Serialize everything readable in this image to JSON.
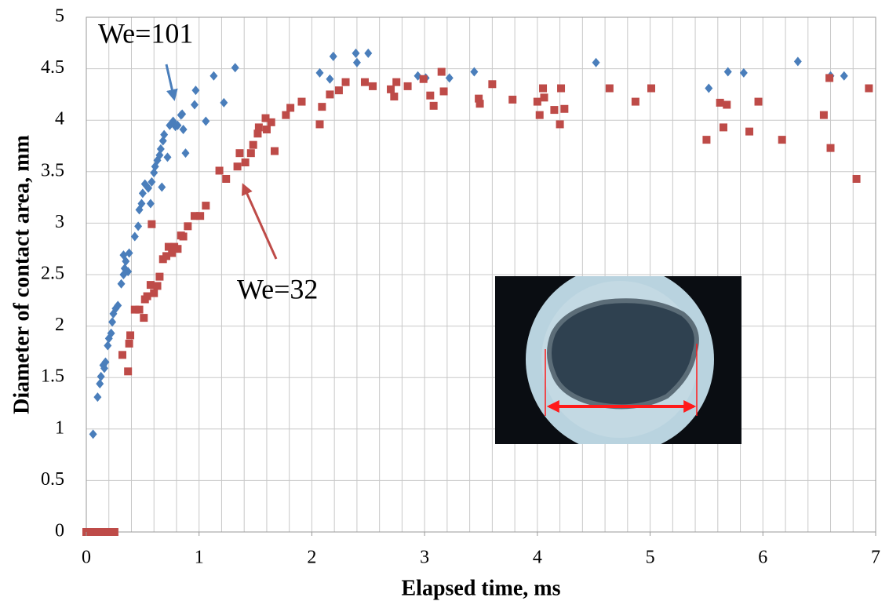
{
  "chart_data": {
    "type": "scatter",
    "xlabel": "Elapsed time, ms",
    "ylabel": "Diameter of contact area, mm",
    "xlim": [
      0,
      7
    ],
    "xticks": [
      0,
      1,
      2,
      3,
      4,
      5,
      6,
      7
    ],
    "ylim": [
      0,
      5
    ],
    "yticks": [
      0,
      0.5,
      1,
      1.5,
      2,
      2.5,
      3,
      3.5,
      4,
      4.5,
      5
    ],
    "grid": true,
    "x_grid_step": 0.2,
    "series": [
      {
        "name": "We=101",
        "color": "#4a7ebb",
        "marker": "diamond",
        "x": [
          0.06,
          0.1,
          0.12,
          0.13,
          0.15,
          0.16,
          0.17,
          0.19,
          0.2,
          0.22,
          0.23,
          0.24,
          0.26,
          0.28,
          0.31,
          0.33,
          0.34,
          0.35,
          0.33,
          0.37,
          0.38,
          0.43,
          0.46,
          0.47,
          0.49,
          0.5,
          0.52,
          0.55,
          0.57,
          0.58,
          0.6,
          0.61,
          0.63,
          0.65,
          0.66,
          0.68,
          0.67,
          0.69,
          0.72,
          0.74,
          0.77,
          0.79,
          0.81,
          0.84,
          0.85,
          0.86,
          0.88,
          0.96,
          0.97,
          1.06,
          1.13,
          1.22,
          1.32,
          2.07,
          2.16,
          2.19,
          2.39,
          2.4,
          2.5,
          2.94,
          3.01,
          3.22,
          3.44,
          4.52,
          5.52,
          5.69,
          5.83,
          6.31,
          6.6,
          6.72
        ],
        "values": [
          0.95,
          1.31,
          1.44,
          1.51,
          1.62,
          1.59,
          1.65,
          1.81,
          1.88,
          1.93,
          2.04,
          2.12,
          2.17,
          2.2,
          2.41,
          2.5,
          2.56,
          2.63,
          2.69,
          2.53,
          2.71,
          2.87,
          2.97,
          3.13,
          3.19,
          3.29,
          3.38,
          3.34,
          3.19,
          3.4,
          3.49,
          3.55,
          3.61,
          3.66,
          3.72,
          3.8,
          3.35,
          3.86,
          3.64,
          3.95,
          3.99,
          3.94,
          3.95,
          4.05,
          4.06,
          3.91,
          3.68,
          4.15,
          4.29,
          3.99,
          4.43,
          4.17,
          4.51,
          4.46,
          4.4,
          4.62,
          4.65,
          4.56,
          4.65,
          4.43,
          4.41,
          4.41,
          4.47,
          4.56,
          4.31,
          4.47,
          4.46,
          4.57,
          4.43,
          4.43
        ]
      },
      {
        "name": "We=32",
        "color": "#be4b48",
        "marker": "square",
        "x": [
          0.0,
          0.03,
          0.06,
          0.1,
          0.13,
          0.16,
          0.2,
          0.25,
          0.32,
          0.37,
          0.38,
          0.39,
          0.43,
          0.47,
          0.51,
          0.52,
          0.54,
          0.57,
          0.6,
          0.63,
          0.65,
          0.58,
          0.68,
          0.71,
          0.73,
          0.76,
          0.78,
          0.81,
          0.84,
          0.86,
          0.9,
          0.96,
          1.01,
          1.06,
          1.18,
          1.24,
          1.34,
          1.36,
          1.41,
          1.46,
          1.48,
          1.52,
          1.53,
          1.59,
          1.6,
          1.64,
          1.67,
          1.77,
          1.81,
          1.91,
          2.07,
          2.09,
          2.16,
          2.24,
          2.3,
          2.47,
          2.54,
          2.7,
          2.73,
          2.75,
          2.85,
          2.99,
          3.05,
          3.08,
          3.15,
          3.17,
          3.48,
          3.49,
          3.6,
          3.78,
          4.0,
          4.02,
          4.05,
          4.06,
          4.15,
          4.2,
          4.21,
          4.24,
          4.64,
          4.87,
          5.01,
          5.5,
          5.62,
          5.65,
          5.68,
          5.88,
          5.96,
          6.17,
          6.54,
          6.59,
          6.6,
          6.83,
          6.94
        ],
        "values": [
          0,
          0,
          0,
          0,
          0,
          0,
          0,
          0,
          1.72,
          1.56,
          1.83,
          1.91,
          2.16,
          2.16,
          2.08,
          2.26,
          2.29,
          2.4,
          2.32,
          2.39,
          2.48,
          2.99,
          2.65,
          2.68,
          2.77,
          2.71,
          2.77,
          2.75,
          2.88,
          2.87,
          2.97,
          3.07,
          3.07,
          3.17,
          3.51,
          3.43,
          3.55,
          3.68,
          3.59,
          3.68,
          3.76,
          3.87,
          3.93,
          4.02,
          3.91,
          3.98,
          3.7,
          4.05,
          4.12,
          4.18,
          3.96,
          4.13,
          4.25,
          4.29,
          4.37,
          4.37,
          4.33,
          4.3,
          4.23,
          4.37,
          4.33,
          4.4,
          4.24,
          4.14,
          4.47,
          4.28,
          4.21,
          4.16,
          4.35,
          4.2,
          4.18,
          4.05,
          4.31,
          4.22,
          4.1,
          3.96,
          4.31,
          4.11,
          4.31,
          4.18,
          4.31,
          3.81,
          4.17,
          3.93,
          4.15,
          3.89,
          4.18,
          3.81,
          4.05,
          4.41,
          3.73,
          3.43,
          4.31
        ]
      }
    ]
  }
}
